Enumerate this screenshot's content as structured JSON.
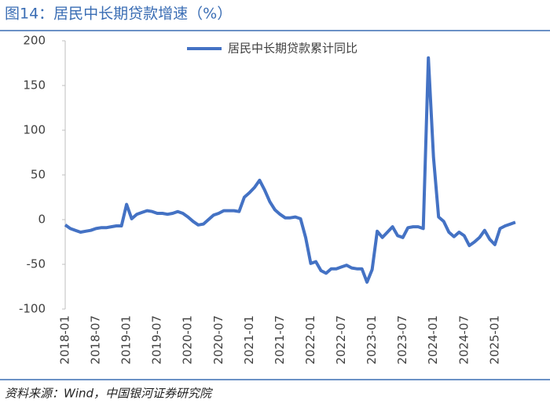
{
  "chart_data": {
    "type": "line",
    "title": "图14：居民中长期贷款增速（%）",
    "source": "资料来源：Wind，中国银河证券研究院",
    "categories": [
      "2018-01",
      null,
      null,
      null,
      null,
      null,
      "2018-07",
      null,
      null,
      null,
      null,
      null,
      "2019-01",
      null,
      null,
      null,
      null,
      null,
      "2019-07",
      null,
      null,
      null,
      null,
      null,
      "2020-01",
      null,
      null,
      null,
      null,
      null,
      "2020-07",
      null,
      null,
      null,
      null,
      null,
      "2021-01",
      null,
      null,
      null,
      null,
      null,
      "2021-07",
      null,
      null,
      null,
      null,
      null,
      "2022-01",
      null,
      null,
      null,
      null,
      null,
      "2022-07",
      null,
      null,
      null,
      null,
      null,
      "2023-01",
      null,
      null,
      null,
      null,
      null,
      "2023-07",
      null,
      null,
      null,
      null,
      null,
      "2024-01",
      null,
      null,
      null,
      null,
      null,
      "2024-07",
      null,
      null,
      null,
      null,
      null,
      "2025-01",
      null,
      null,
      null,
      null
    ],
    "series": [
      {
        "name": "居民中长期贷款累计同比",
        "color": "#4472c4",
        "values": [
          -6,
          -10,
          -12,
          -14,
          -13,
          -12,
          -10,
          -9,
          -9,
          -8,
          -7,
          -7,
          17,
          1,
          6,
          8,
          10,
          9,
          7,
          7,
          6,
          7,
          9,
          7,
          3,
          -2,
          -6,
          -5,
          0,
          5,
          7,
          10,
          10,
          10,
          9,
          25,
          30,
          36,
          44,
          33,
          20,
          11,
          6,
          2,
          2,
          3,
          1,
          -20,
          -49,
          -47,
          -57,
          -60,
          -55,
          -55,
          -53,
          -51,
          -54,
          -55,
          -55,
          -70,
          -56,
          -13,
          -20,
          -14,
          -8,
          -18,
          -20,
          -9,
          -8,
          -8,
          -10,
          181,
          70,
          3,
          -2,
          -14,
          -19,
          -14,
          -18,
          -29,
          -25,
          -20,
          -12,
          -22,
          -28,
          -10,
          -7,
          -5,
          -3
        ]
      }
    ],
    "ylim": [
      -100,
      200
    ],
    "yticks": [
      -100,
      -50,
      0,
      50,
      100,
      150,
      200
    ],
    "legend": "top",
    "grid": false
  }
}
